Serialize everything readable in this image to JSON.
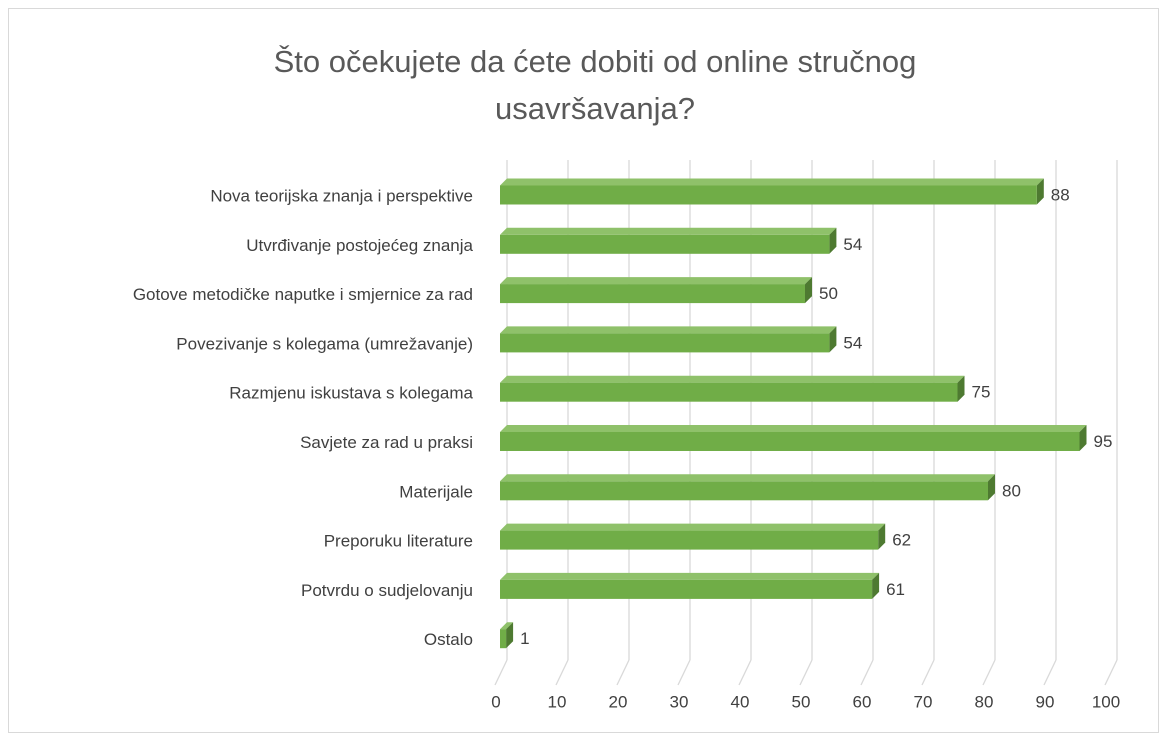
{
  "chart_data": {
    "type": "bar",
    "orientation": "horizontal",
    "three_d": true,
    "title": "Što očekujete da ćete dobiti od online stručnog usavršavanja?",
    "categories": [
      "Nova teorijska znanja i perspektive",
      "Utvrđivanje postojećeg znanja",
      "Gotove metodičke naputke i smjernice za rad",
      "Povezivanje s kolegama (umrežavanje)",
      "Razmjenu iskustava s kolegama",
      "Savjete za rad u praksi",
      "Materijale",
      "Preporuku literature",
      "Potvrdu o sudjelovanju",
      "Ostalo"
    ],
    "values": [
      88,
      54,
      50,
      54,
      75,
      95,
      80,
      62,
      61,
      1
    ],
    "color": "#70ad47",
    "xlim": [
      0,
      100
    ],
    "xticks": [
      0,
      10,
      20,
      30,
      40,
      50,
      60,
      70,
      80,
      90,
      100
    ],
    "grid": true
  }
}
